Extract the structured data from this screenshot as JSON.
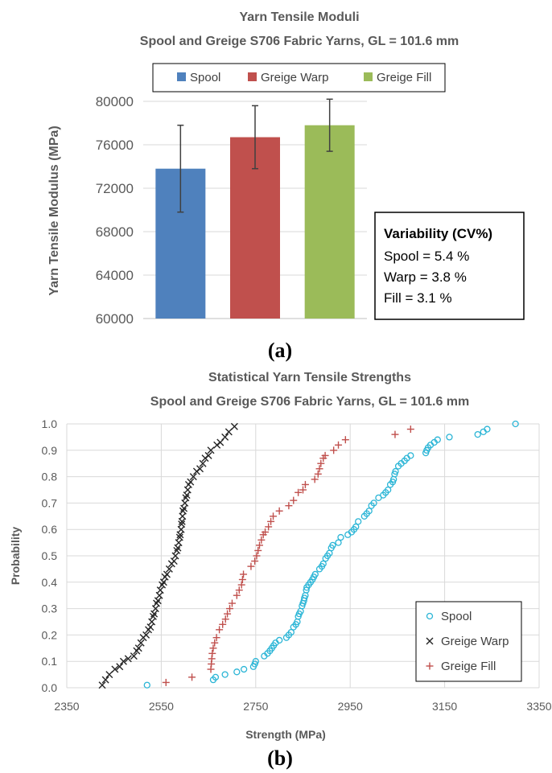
{
  "chart_data": [
    {
      "type": "bar",
      "panel_label": "(a)",
      "title": "Yarn Tensile Moduli",
      "subtitle": "Spool and Greige S706 Fabric Yarns, GL = 101.6 mm",
      "xlabel": "",
      "ylabel": "Yarn Tensile Modulus (MPa)",
      "ylim": [
        60000,
        80000
      ],
      "yticks": [
        60000,
        64000,
        68000,
        72000,
        76000,
        80000
      ],
      "grid": true,
      "legend_position": "top",
      "series": [
        {
          "name": "Spool",
          "value": 73800,
          "error_low": 69800,
          "error_high": 77800,
          "color": "#4f81bd"
        },
        {
          "name": "Greige Warp",
          "value": 76700,
          "error_low": 73800,
          "error_high": 79600,
          "color": "#c0504d"
        },
        {
          "name": "Greige Fill",
          "value": 77800,
          "error_low": 75400,
          "error_high": 80200,
          "color": "#9bbb59"
        }
      ],
      "annotation": {
        "heading": "Variability (CV%)",
        "lines": [
          "Spool = 5.4 %",
          "Warp = 3.8 %",
          "Fill = 3.1 %"
        ]
      }
    },
    {
      "type": "scatter",
      "panel_label": "(b)",
      "title": "Statistical Yarn Tensile Strengths",
      "subtitle": "Spool and Greige S706 Fabric Yarns, GL = 101.6 mm",
      "xlabel": "Strength (MPa)",
      "ylabel": "Probability",
      "xlim": [
        2350,
        3350
      ],
      "xticks": [
        2350,
        2550,
        2750,
        2950,
        3150,
        3350
      ],
      "ylim": [
        0,
        1
      ],
      "yticks": [
        "0.0",
        "0.1",
        "0.2",
        "0.3",
        "0.4",
        "0.5",
        "0.6",
        "0.7",
        "0.8",
        "0.9",
        "1.0"
      ],
      "grid": true,
      "legend_position": "bottom-right",
      "series": [
        {
          "name": "Spool",
          "marker": "circle",
          "color": "#2bb5d6",
          "points": [
            [
              2520,
              0.01
            ],
            [
              2660,
              0.03
            ],
            [
              2665,
              0.04
            ],
            [
              2685,
              0.05
            ],
            [
              2710,
              0.06
            ],
            [
              2725,
              0.07
            ],
            [
              2745,
              0.08
            ],
            [
              2748,
              0.09
            ],
            [
              2750,
              0.1
            ],
            [
              2768,
              0.12
            ],
            [
              2775,
              0.13
            ],
            [
              2780,
              0.14
            ],
            [
              2784,
              0.15
            ],
            [
              2788,
              0.16
            ],
            [
              2792,
              0.17
            ],
            [
              2800,
              0.18
            ],
            [
              2815,
              0.19
            ],
            [
              2820,
              0.2
            ],
            [
              2825,
              0.21
            ],
            [
              2830,
              0.23
            ],
            [
              2835,
              0.24
            ],
            [
              2838,
              0.25
            ],
            [
              2840,
              0.27
            ],
            [
              2842,
              0.28
            ],
            [
              2845,
              0.29
            ],
            [
              2848,
              0.31
            ],
            [
              2850,
              0.32
            ],
            [
              2852,
              0.33
            ],
            [
              2853,
              0.34
            ],
            [
              2855,
              0.35
            ],
            [
              2857,
              0.37
            ],
            [
              2858,
              0.38
            ],
            [
              2862,
              0.39
            ],
            [
              2866,
              0.4
            ],
            [
              2870,
              0.41
            ],
            [
              2873,
              0.42
            ],
            [
              2876,
              0.43
            ],
            [
              2885,
              0.45
            ],
            [
              2890,
              0.46
            ],
            [
              2893,
              0.47
            ],
            [
              2898,
              0.49
            ],
            [
              2902,
              0.5
            ],
            [
              2906,
              0.51
            ],
            [
              2910,
              0.53
            ],
            [
              2913,
              0.54
            ],
            [
              2925,
              0.55
            ],
            [
              2930,
              0.57
            ],
            [
              2945,
              0.58
            ],
            [
              2953,
              0.59
            ],
            [
              2958,
              0.6
            ],
            [
              2962,
              0.61
            ],
            [
              2967,
              0.63
            ],
            [
              2980,
              0.65
            ],
            [
              2985,
              0.66
            ],
            [
              2990,
              0.67
            ],
            [
              2995,
              0.69
            ],
            [
              3000,
              0.7
            ],
            [
              3010,
              0.72
            ],
            [
              3020,
              0.73
            ],
            [
              3025,
              0.74
            ],
            [
              3030,
              0.75
            ],
            [
              3035,
              0.77
            ],
            [
              3040,
              0.78
            ],
            [
              3042,
              0.79
            ],
            [
              3044,
              0.81
            ],
            [
              3046,
              0.82
            ],
            [
              3052,
              0.84
            ],
            [
              3058,
              0.85
            ],
            [
              3065,
              0.86
            ],
            [
              3070,
              0.87
            ],
            [
              3078,
              0.88
            ],
            [
              3110,
              0.89
            ],
            [
              3112,
              0.9
            ],
            [
              3115,
              0.91
            ],
            [
              3120,
              0.92
            ],
            [
              3128,
              0.93
            ],
            [
              3135,
              0.94
            ],
            [
              3160,
              0.95
            ],
            [
              3220,
              0.96
            ],
            [
              3232,
              0.97
            ],
            [
              3240,
              0.98
            ],
            [
              3300,
              1.0
            ]
          ]
        },
        {
          "name": "Greige Warp",
          "marker": "x",
          "color": "#262626",
          "points": [
            [
              2425,
              0.01
            ],
            [
              2432,
              0.03
            ],
            [
              2440,
              0.05
            ],
            [
              2452,
              0.07
            ],
            [
              2462,
              0.08
            ],
            [
              2470,
              0.1
            ],
            [
              2480,
              0.11
            ],
            [
              2492,
              0.12
            ],
            [
              2498,
              0.14
            ],
            [
              2502,
              0.15
            ],
            [
              2507,
              0.17
            ],
            [
              2512,
              0.19
            ],
            [
              2518,
              0.2
            ],
            [
              2523,
              0.22
            ],
            [
              2527,
              0.23
            ],
            [
              2530,
              0.25
            ],
            [
              2533,
              0.27
            ],
            [
              2535,
              0.28
            ],
            [
              2538,
              0.3
            ],
            [
              2540,
              0.32
            ],
            [
              2543,
              0.33
            ],
            [
              2546,
              0.35
            ],
            [
              2548,
              0.37
            ],
            [
              2552,
              0.39
            ],
            [
              2555,
              0.4
            ],
            [
              2558,
              0.42
            ],
            [
              2562,
              0.43
            ],
            [
              2567,
              0.45
            ],
            [
              2572,
              0.47
            ],
            [
              2577,
              0.48
            ],
            [
              2580,
              0.5
            ],
            [
              2583,
              0.52
            ],
            [
              2585,
              0.53
            ],
            [
              2587,
              0.55
            ],
            [
              2589,
              0.57
            ],
            [
              2590,
              0.58
            ],
            [
              2592,
              0.6
            ],
            [
              2593,
              0.62
            ],
            [
              2594,
              0.63
            ],
            [
              2595,
              0.65
            ],
            [
              2596,
              0.67
            ],
            [
              2598,
              0.68
            ],
            [
              2600,
              0.7
            ],
            [
              2602,
              0.72
            ],
            [
              2604,
              0.73
            ],
            [
              2606,
              0.75
            ],
            [
              2608,
              0.77
            ],
            [
              2612,
              0.78
            ],
            [
              2618,
              0.8
            ],
            [
              2625,
              0.82
            ],
            [
              2632,
              0.83
            ],
            [
              2638,
              0.85
            ],
            [
              2643,
              0.87
            ],
            [
              2650,
              0.88
            ],
            [
              2655,
              0.9
            ],
            [
              2668,
              0.92
            ],
            [
              2675,
              0.93
            ],
            [
              2685,
              0.95
            ],
            [
              2693,
              0.97
            ],
            [
              2705,
              0.99
            ]
          ]
        },
        {
          "name": "Greige Fill",
          "marker": "plus",
          "color": "#c0504d",
          "points": [
            [
              2560,
              0.02
            ],
            [
              2615,
              0.04
            ],
            [
              2655,
              0.07
            ],
            [
              2656,
              0.09
            ],
            [
              2657,
              0.11
            ],
            [
              2658,
              0.13
            ],
            [
              2660,
              0.15
            ],
            [
              2663,
              0.17
            ],
            [
              2667,
              0.19
            ],
            [
              2673,
              0.22
            ],
            [
              2680,
              0.24
            ],
            [
              2686,
              0.26
            ],
            [
              2690,
              0.28
            ],
            [
              2695,
              0.3
            ],
            [
              2700,
              0.32
            ],
            [
              2710,
              0.35
            ],
            [
              2715,
              0.37
            ],
            [
              2720,
              0.39
            ],
            [
              2722,
              0.41
            ],
            [
              2724,
              0.43
            ],
            [
              2740,
              0.46
            ],
            [
              2748,
              0.48
            ],
            [
              2752,
              0.5
            ],
            [
              2755,
              0.52
            ],
            [
              2758,
              0.54
            ],
            [
              2762,
              0.56
            ],
            [
              2766,
              0.58
            ],
            [
              2770,
              0.59
            ],
            [
              2777,
              0.61
            ],
            [
              2782,
              0.63
            ],
            [
              2787,
              0.65
            ],
            [
              2800,
              0.67
            ],
            [
              2820,
              0.69
            ],
            [
              2830,
              0.71
            ],
            [
              2840,
              0.74
            ],
            [
              2850,
              0.75
            ],
            [
              2855,
              0.77
            ],
            [
              2875,
              0.79
            ],
            [
              2882,
              0.81
            ],
            [
              2885,
              0.83
            ],
            [
              2888,
              0.85
            ],
            [
              2893,
              0.87
            ],
            [
              2897,
              0.88
            ],
            [
              2915,
              0.9
            ],
            [
              2925,
              0.92
            ],
            [
              2940,
              0.94
            ],
            [
              3045,
              0.96
            ],
            [
              3078,
              0.98
            ]
          ]
        }
      ]
    }
  ]
}
